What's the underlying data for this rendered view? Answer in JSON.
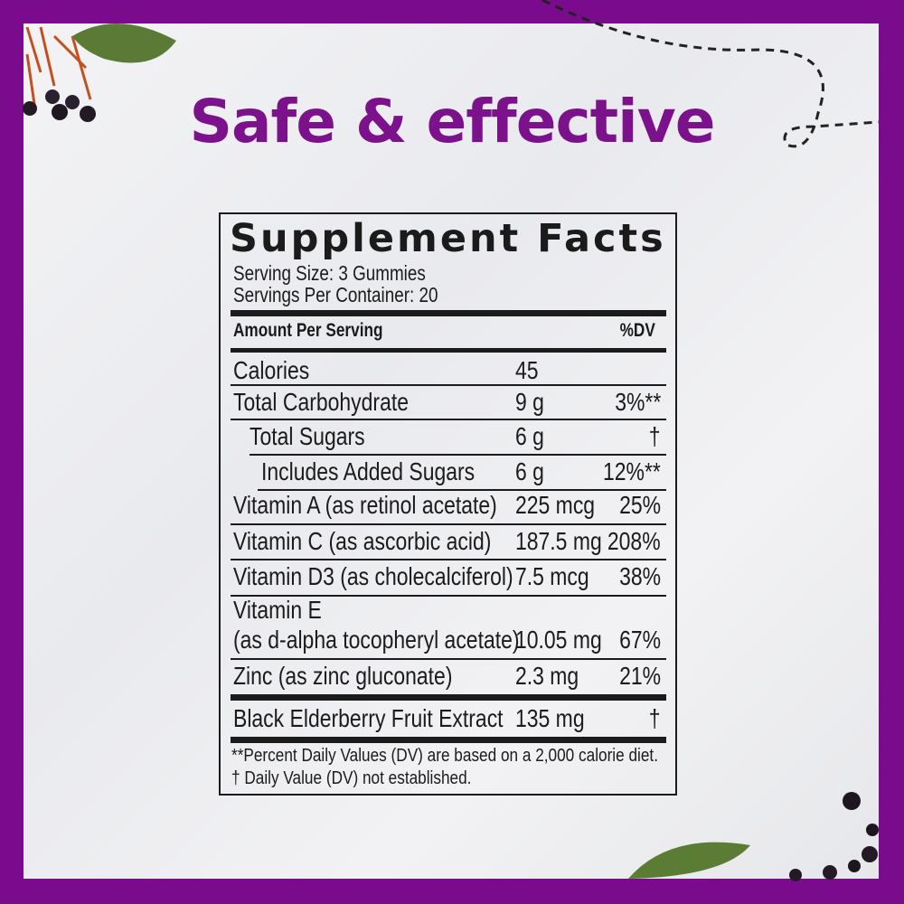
{
  "headline": "Safe & effective",
  "colors": {
    "brand_purple": "#7a0b8c",
    "text": "#1b1b1b"
  },
  "facts": {
    "title": "Supplement Facts",
    "serving_size": "Serving Size: 3 Gummies",
    "servings_per_container": "Servings Per Container: 20",
    "amount_header": "Amount Per Serving",
    "dv_header": "%DV",
    "rows": [
      {
        "name": "Calories",
        "amount": "45",
        "dv": ""
      },
      {
        "name": "Total Carbohydrate",
        "amount": "9 g",
        "dv": "3%**"
      },
      {
        "name": "Total Sugars",
        "amount": "6 g",
        "dv": "†"
      },
      {
        "name": "Includes Added Sugars",
        "amount": "6 g",
        "dv": "12%**"
      },
      {
        "name": "Vitamin A (as retinol acetate)",
        "amount": "225 mcg",
        "dv": "25%"
      },
      {
        "name": "Vitamin C (as ascorbic acid)",
        "amount": "187.5 mg",
        "dv": "208%"
      },
      {
        "name": "Vitamin D3 (as cholecalciferol)",
        "amount": "7.5 mcg",
        "dv": "38%"
      },
      {
        "name": "Vitamin E",
        "name2": "(as d-alpha tocopheryl acetate)",
        "amount": "10.05 mg",
        "dv": "67%"
      },
      {
        "name": "Zinc (as zinc gluconate)",
        "amount": "2.3 mg",
        "dv": "21%"
      },
      {
        "name": "Black Elderberry Fruit Extract",
        "amount": "135 mg",
        "dv": "†"
      }
    ],
    "footnotes": [
      "**Percent Daily Values (DV) are based on a 2,000 calorie diet.",
      "† Daily Value (DV) not established."
    ]
  }
}
